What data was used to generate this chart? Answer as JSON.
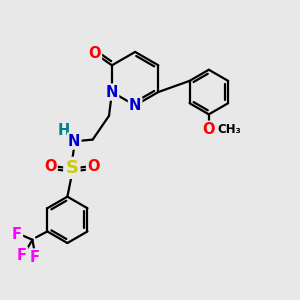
{
  "bg_color": "#e8e8e8",
  "bond_color": "#000000",
  "bond_width": 1.6,
  "atom_colors": {
    "N": "#0000cc",
    "O": "#ff0000",
    "S": "#cccc00",
    "H": "#008080",
    "F": "#ff00ff",
    "C": "#000000"
  },
  "font_size_atom": 10.5,
  "font_size_small": 9.0
}
